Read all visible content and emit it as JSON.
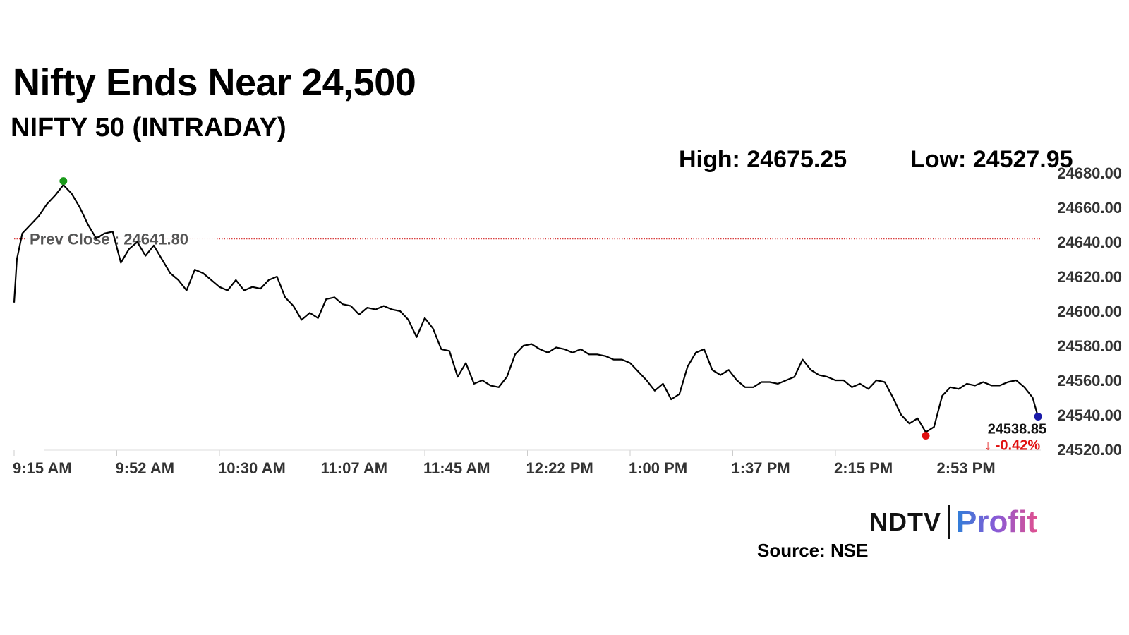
{
  "header": {
    "title": "Nifty Ends Near 24,500",
    "subtitle": "NIFTY 50 (INTRADAY)",
    "high_label": "High: 24675.25",
    "low_label": "Low: 24527.95"
  },
  "chart_data": {
    "type": "line",
    "title": "Nifty Ends Near 24,500",
    "subtitle": "NIFTY 50 (INTRADAY)",
    "xlabel": "",
    "ylabel": "",
    "x_ticks": [
      "9:15 AM",
      "9:52 AM",
      "10:30 AM",
      "11:07 AM",
      "11:45 AM",
      "12:22 PM",
      "1:00 PM",
      "1:37 PM",
      "2:15 PM",
      "2:53 PM"
    ],
    "y_ticks": [
      "24520.00",
      "24540.00",
      "24560.00",
      "24580.00",
      "24600.00",
      "24620.00",
      "24640.00",
      "24660.00",
      "24680.00"
    ],
    "ylim": [
      24520,
      24680
    ],
    "x_range": [
      "9:15 AM",
      "3:30 PM"
    ],
    "grid": false,
    "series": [
      {
        "x": [
          "9:15 AM",
          "9:16 AM",
          "9:18 AM",
          "9:21 AM",
          "9:24 AM",
          "9:27 AM",
          "9:30 AM",
          "9:33 AM",
          "9:36 AM",
          "9:39 AM",
          "9:42 AM",
          "9:45 AM",
          "9:48 AM",
          "9:51 AM",
          "9:54 AM",
          "9:57 AM",
          "10:00 AM",
          "10:03 AM",
          "10:06 AM",
          "10:09 AM",
          "10:12 AM",
          "10:15 AM",
          "10:18 AM",
          "10:21 AM",
          "10:24 AM",
          "10:27 AM",
          "10:30 AM",
          "10:33 AM",
          "10:36 AM",
          "10:39 AM",
          "10:42 AM",
          "10:45 AM",
          "10:48 AM",
          "10:51 AM",
          "10:54 AM",
          "10:57 AM",
          "11:00 AM",
          "11:03 AM",
          "11:06 AM",
          "11:09 AM",
          "11:12 AM",
          "11:15 AM",
          "11:18 AM",
          "11:21 AM",
          "11:24 AM",
          "11:27 AM",
          "11:30 AM",
          "11:33 AM",
          "11:36 AM",
          "11:39 AM",
          "11:42 AM",
          "11:45 AM",
          "11:48 AM",
          "11:51 AM",
          "11:54 AM",
          "11:57 AM",
          "12:00 PM",
          "12:03 PM",
          "12:06 PM",
          "12:09 PM",
          "12:12 PM",
          "12:15 PM",
          "12:18 PM",
          "12:21 PM",
          "12:24 PM",
          "12:27 PM",
          "12:30 PM",
          "12:33 PM",
          "12:36 PM",
          "12:39 PM",
          "12:42 PM",
          "12:45 PM",
          "12:48 PM",
          "12:51 PM",
          "12:54 PM",
          "12:57 PM",
          "1:00 PM",
          "1:03 PM",
          "1:06 PM",
          "1:09 PM",
          "1:12 PM",
          "1:15 PM",
          "1:18 PM",
          "1:21 PM",
          "1:24 PM",
          "1:27 PM",
          "1:30 PM",
          "1:33 PM",
          "1:36 PM",
          "1:39 PM",
          "1:42 PM",
          "1:45 PM",
          "1:48 PM",
          "1:51 PM",
          "1:54 PM",
          "1:57 PM",
          "2:00 PM",
          "2:03 PM",
          "2:06 PM",
          "2:09 PM",
          "2:12 PM",
          "2:15 PM",
          "2:18 PM",
          "2:21 PM",
          "2:24 PM",
          "2:27 PM",
          "2:30 PM",
          "2:33 PM",
          "2:36 PM",
          "2:39 PM",
          "2:42 PM",
          "2:45 PM",
          "2:48 PM",
          "2:51 PM",
          "2:54 PM",
          "2:57 PM",
          "3:00 PM",
          "3:03 PM",
          "3:06 PM",
          "3:09 PM",
          "3:12 PM",
          "3:15 PM",
          "3:18 PM",
          "3:21 PM",
          "3:24 PM",
          "3:27 PM",
          "3:29 PM"
        ],
        "values": [
          24605,
          24630,
          24645,
          24650,
          24655,
          24662,
          24667,
          24673,
          24668,
          24660,
          24650,
          24642,
          24645,
          24646,
          24628,
          24636,
          24640,
          24632,
          24638,
          24630,
          24622,
          24618,
          24612,
          24624,
          24622,
          24618,
          24614,
          24612,
          24618,
          24612,
          24614,
          24613,
          24618,
          24620,
          24608,
          24603,
          24595,
          24599,
          24596,
          24607,
          24608,
          24604,
          24603,
          24598,
          24602,
          24601,
          24603,
          24601,
          24600,
          24595,
          24585,
          24596,
          24590,
          24578,
          24577,
          24562,
          24570,
          24558,
          24560,
          24557,
          24556,
          24562,
          24575,
          24580,
          24581,
          24578,
          24576,
          24579,
          24578,
          24576,
          24578,
          24575,
          24575,
          24574,
          24572,
          24572,
          24570,
          24565,
          24560,
          24554,
          24558,
          24549,
          24552,
          24568,
          24576,
          24578,
          24566,
          24563,
          24566,
          24560,
          24556,
          24556,
          24559,
          24559,
          24558,
          24560,
          24562,
          24572,
          24566,
          24563,
          24562,
          24560,
          24560,
          24556,
          24558,
          24555,
          24560,
          24559,
          24550,
          24540,
          24535,
          24538,
          24530,
          24533,
          24551,
          24556,
          24555,
          24558,
          24557,
          24559,
          24557,
          24557,
          24559,
          24560,
          24556,
          24550,
          24539
        ]
      }
    ],
    "prev_close": {
      "label": "Prev Close : 24641.80",
      "value": 24641.8
    },
    "high_point": {
      "time": "9:33 AM",
      "value": 24675.25
    },
    "low_point": {
      "time": "2:48 PM",
      "value": 24527.95
    },
    "last": {
      "value": 24538.85,
      "label": "24538.85",
      "change_label": "-0.42%",
      "arrow": "↓"
    },
    "colors": {
      "line": "#000000",
      "prev_close": "#d94040",
      "high_marker": "#1a9a1a",
      "low_marker": "#e01010",
      "last_marker": "#1a1aa8",
      "change": "#e01010",
      "axis_text": "#333333"
    }
  },
  "footer": {
    "logo_ndtv": "NDTV",
    "logo_profit": "Profit",
    "source": "Source: NSE"
  }
}
